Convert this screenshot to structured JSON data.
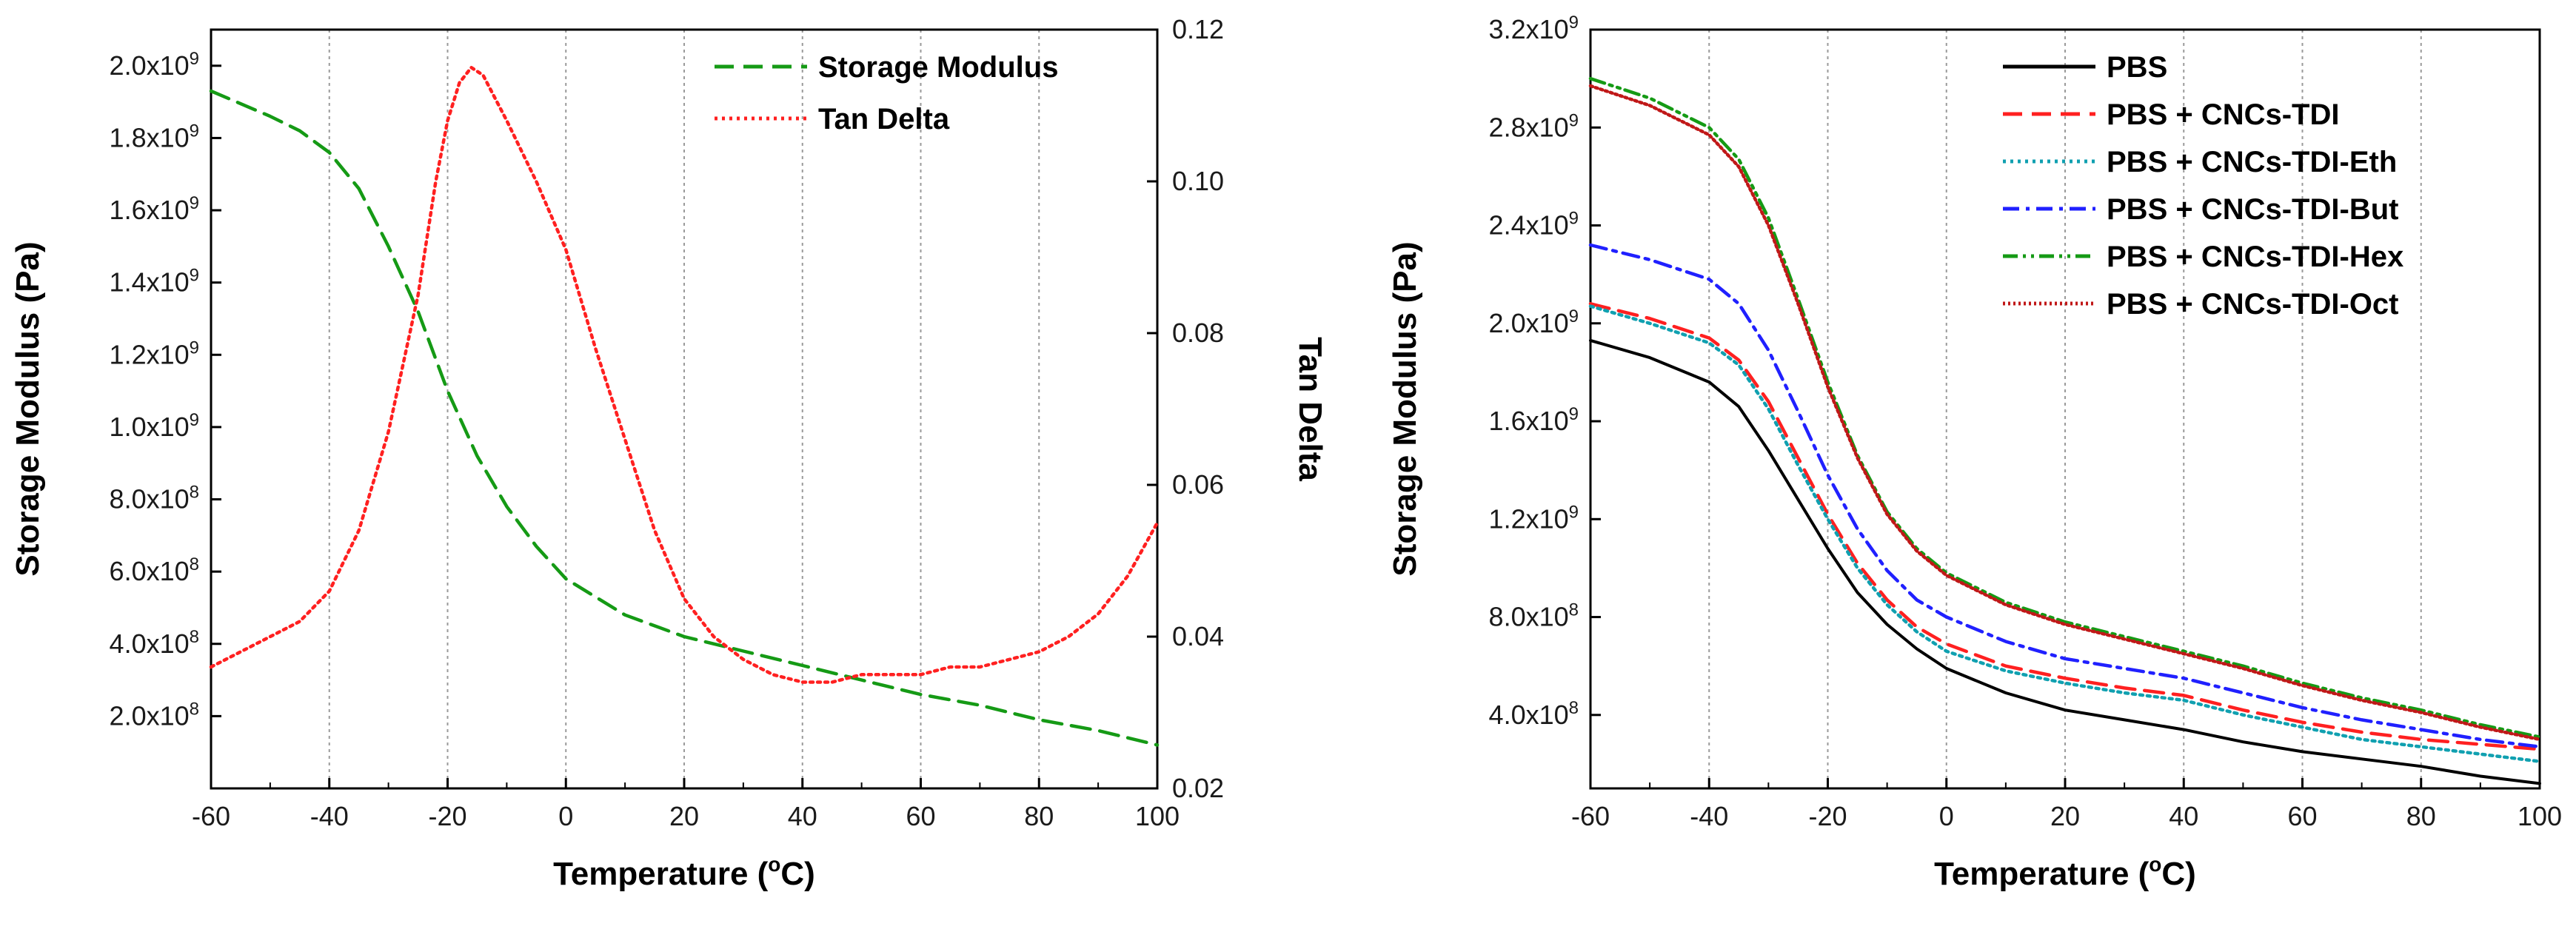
{
  "chart_data": [
    {
      "type": "line",
      "panel": "left",
      "title": "",
      "xlabel": "Temperature (oC)",
      "xlabel_parts": {
        "pre": "Temperature (",
        "sup": "o",
        "post": "C)"
      },
      "ylabel": "Storage Modulus (Pa)",
      "y2label": "Tan Delta",
      "xlim": [
        -60,
        100
      ],
      "ylim": [
        0.0,
        2100000000.0
      ],
      "y2lim": [
        0.02,
        0.12
      ],
      "x_ticks": [
        -60,
        -40,
        -20,
        0,
        20,
        40,
        60,
        80,
        100
      ],
      "x_tick_labels": [
        "-60",
        "-40",
        "-20",
        "0",
        "20",
        "40",
        "60",
        "80",
        "100"
      ],
      "y_ticks": [
        {
          "value": 200000000.0,
          "mant": "2.0x10",
          "exp": "8"
        },
        {
          "value": 400000000.0,
          "mant": "4.0x10",
          "exp": "8"
        },
        {
          "value": 600000000.0,
          "mant": "6.0x10",
          "exp": "8"
        },
        {
          "value": 800000000.0,
          "mant": "8.0x10",
          "exp": "8"
        },
        {
          "value": 1000000000.0,
          "mant": "1.0x10",
          "exp": "9"
        },
        {
          "value": 1200000000.0,
          "mant": "1.2x10",
          "exp": "9"
        },
        {
          "value": 1400000000.0,
          "mant": "1.4x10",
          "exp": "9"
        },
        {
          "value": 1600000000.0,
          "mant": "1.6x10",
          "exp": "9"
        },
        {
          "value": 1800000000.0,
          "mant": "1.8x10",
          "exp": "9"
        },
        {
          "value": 2000000000.0,
          "mant": "2.0x10",
          "exp": "9"
        }
      ],
      "y2_ticks": [
        0.02,
        0.04,
        0.06,
        0.08,
        0.1,
        0.12
      ],
      "y2_tick_labels": [
        "0.02",
        "0.04",
        "0.06",
        "0.08",
        "0.10",
        "0.12"
      ],
      "grid": "vertical-dotted",
      "legend_position": "top-right",
      "series": [
        {
          "name": "Storage Modulus",
          "axis": "left",
          "color": "#159a15",
          "style": "dashed",
          "x": [
            -60,
            -50,
            -45,
            -40,
            -35,
            -30,
            -25,
            -20,
            -15,
            -10,
            -5,
            0,
            10,
            20,
            30,
            40,
            50,
            60,
            70,
            80,
            90,
            100
          ],
          "values": [
            1930000000.0,
            1860000000.0,
            1820000000.0,
            1760000000.0,
            1660000000.0,
            1500000000.0,
            1320000000.0,
            1100000000.0,
            920000000.0,
            780000000.0,
            670000000.0,
            580000000.0,
            480000000.0,
            420000000.0,
            380000000.0,
            340000000.0,
            300000000.0,
            260000000.0,
            230000000.0,
            190000000.0,
            160000000.0,
            120000000.0
          ]
        },
        {
          "name": "Tan Delta",
          "axis": "right",
          "color": "#ff2020",
          "style": "dotted",
          "x": [
            -60,
            -55,
            -50,
            -45,
            -40,
            -35,
            -30,
            -25,
            -22,
            -20,
            -18,
            -16,
            -14,
            -12,
            -10,
            -5,
            0,
            5,
            10,
            15,
            20,
            25,
            30,
            35,
            40,
            45,
            50,
            55,
            60,
            65,
            70,
            75,
            80,
            85,
            90,
            95,
            100
          ],
          "values": [
            0.036,
            0.038,
            0.04,
            0.042,
            0.046,
            0.054,
            0.067,
            0.085,
            0.1,
            0.108,
            0.113,
            0.115,
            0.114,
            0.111,
            0.108,
            0.1,
            0.091,
            0.078,
            0.066,
            0.054,
            0.045,
            0.04,
            0.037,
            0.035,
            0.034,
            0.034,
            0.035,
            0.035,
            0.035,
            0.036,
            0.036,
            0.037,
            0.038,
            0.04,
            0.043,
            0.048,
            0.055
          ]
        }
      ]
    },
    {
      "type": "line",
      "panel": "right",
      "title": "",
      "xlabel": "Temperature (oC)",
      "xlabel_parts": {
        "pre": "Temperature (",
        "sup": "o",
        "post": "C)"
      },
      "ylabel": "Storage Modulus (Pa)",
      "xlim": [
        -60,
        100
      ],
      "ylim": [
        100000000.0,
        3200000000.0
      ],
      "x_ticks": [
        -60,
        -40,
        -20,
        0,
        20,
        40,
        60,
        80,
        100
      ],
      "x_tick_labels": [
        "-60",
        "-40",
        "-20",
        "0",
        "20",
        "40",
        "60",
        "80",
        "100"
      ],
      "y_ticks": [
        {
          "value": 400000000.0,
          "mant": "4.0x10",
          "exp": "8"
        },
        {
          "value": 800000000.0,
          "mant": "8.0x10",
          "exp": "8"
        },
        {
          "value": 1200000000.0,
          "mant": "1.2x10",
          "exp": "9"
        },
        {
          "value": 1600000000.0,
          "mant": "1.6x10",
          "exp": "9"
        },
        {
          "value": 2000000000.0,
          "mant": "2.0x10",
          "exp": "9"
        },
        {
          "value": 2400000000.0,
          "mant": "2.4x10",
          "exp": "9"
        },
        {
          "value": 2800000000.0,
          "mant": "2.8x10",
          "exp": "9"
        },
        {
          "value": 3200000000.0,
          "mant": "3.2x10",
          "exp": "9"
        }
      ],
      "grid": "vertical-dotted",
      "legend_position": "top-right",
      "x": [
        -60,
        -50,
        -40,
        -35,
        -30,
        -25,
        -20,
        -15,
        -10,
        -5,
        0,
        10,
        20,
        30,
        40,
        50,
        60,
        70,
        80,
        90,
        100
      ],
      "series": [
        {
          "name": "PBS",
          "color": "#000000",
          "style": "solid",
          "values": [
            1930000000.0,
            1860000000.0,
            1760000000.0,
            1660000000.0,
            1480000000.0,
            1280000000.0,
            1080000000.0,
            900000000.0,
            770000000.0,
            670000000.0,
            590000000.0,
            490000000.0,
            420000000.0,
            380000000.0,
            340000000.0,
            290000000.0,
            250000000.0,
            220000000.0,
            190000000.0,
            150000000.0,
            120000000.0
          ]
        },
        {
          "name": "PBS + CNCs-TDI",
          "color": "#ff2020",
          "style": "dashed",
          "values": [
            2080000000.0,
            2020000000.0,
            1940000000.0,
            1850000000.0,
            1680000000.0,
            1450000000.0,
            1220000000.0,
            1020000000.0,
            870000000.0,
            760000000.0,
            690000000.0,
            600000000.0,
            550000000.0,
            510000000.0,
            480000000.0,
            420000000.0,
            370000000.0,
            330000000.0,
            300000000.0,
            280000000.0,
            260000000.0
          ]
        },
        {
          "name": "PBS + CNCs-TDI-Eth",
          "color": "#10a0b0",
          "style": "dotted",
          "values": [
            2070000000.0,
            2000000000.0,
            1920000000.0,
            1830000000.0,
            1650000000.0,
            1420000000.0,
            1200000000.0,
            1000000000.0,
            850000000.0,
            740000000.0,
            660000000.0,
            580000000.0,
            530000000.0,
            490000000.0,
            460000000.0,
            400000000.0,
            350000000.0,
            300000000.0,
            270000000.0,
            240000000.0,
            210000000.0
          ]
        },
        {
          "name": "PBS + CNCs-TDI-But",
          "color": "#2020ff",
          "style": "dashdot",
          "values": [
            2320000000.0,
            2260000000.0,
            2180000000.0,
            2080000000.0,
            1890000000.0,
            1640000000.0,
            1380000000.0,
            1160000000.0,
            990000000.0,
            870000000.0,
            800000000.0,
            700000000.0,
            630000000.0,
            590000000.0,
            550000000.0,
            490000000.0,
            430000000.0,
            380000000.0,
            340000000.0,
            300000000.0,
            270000000.0
          ]
        },
        {
          "name": "PBS + CNCs-TDI-Hex",
          "color": "#159a15",
          "style": "dashdotdot",
          "values": [
            3000000000.0,
            2920000000.0,
            2800000000.0,
            2670000000.0,
            2430000000.0,
            2100000000.0,
            1760000000.0,
            1460000000.0,
            1230000000.0,
            1080000000.0,
            980000000.0,
            860000000.0,
            780000000.0,
            720000000.0,
            660000000.0,
            600000000.0,
            530000000.0,
            470000000.0,
            420000000.0,
            360000000.0,
            310000000.0
          ]
        },
        {
          "name": "PBS + CNCs-TDI-Oct",
          "color": "#c01818",
          "style": "shortdot",
          "values": [
            2970000000.0,
            2890000000.0,
            2770000000.0,
            2640000000.0,
            2400000000.0,
            2080000000.0,
            1740000000.0,
            1450000000.0,
            1220000000.0,
            1070000000.0,
            970000000.0,
            850000000.0,
            770000000.0,
            710000000.0,
            650000000.0,
            590000000.0,
            520000000.0,
            460000000.0,
            410000000.0,
            350000000.0,
            300000000.0
          ]
        }
      ]
    }
  ]
}
